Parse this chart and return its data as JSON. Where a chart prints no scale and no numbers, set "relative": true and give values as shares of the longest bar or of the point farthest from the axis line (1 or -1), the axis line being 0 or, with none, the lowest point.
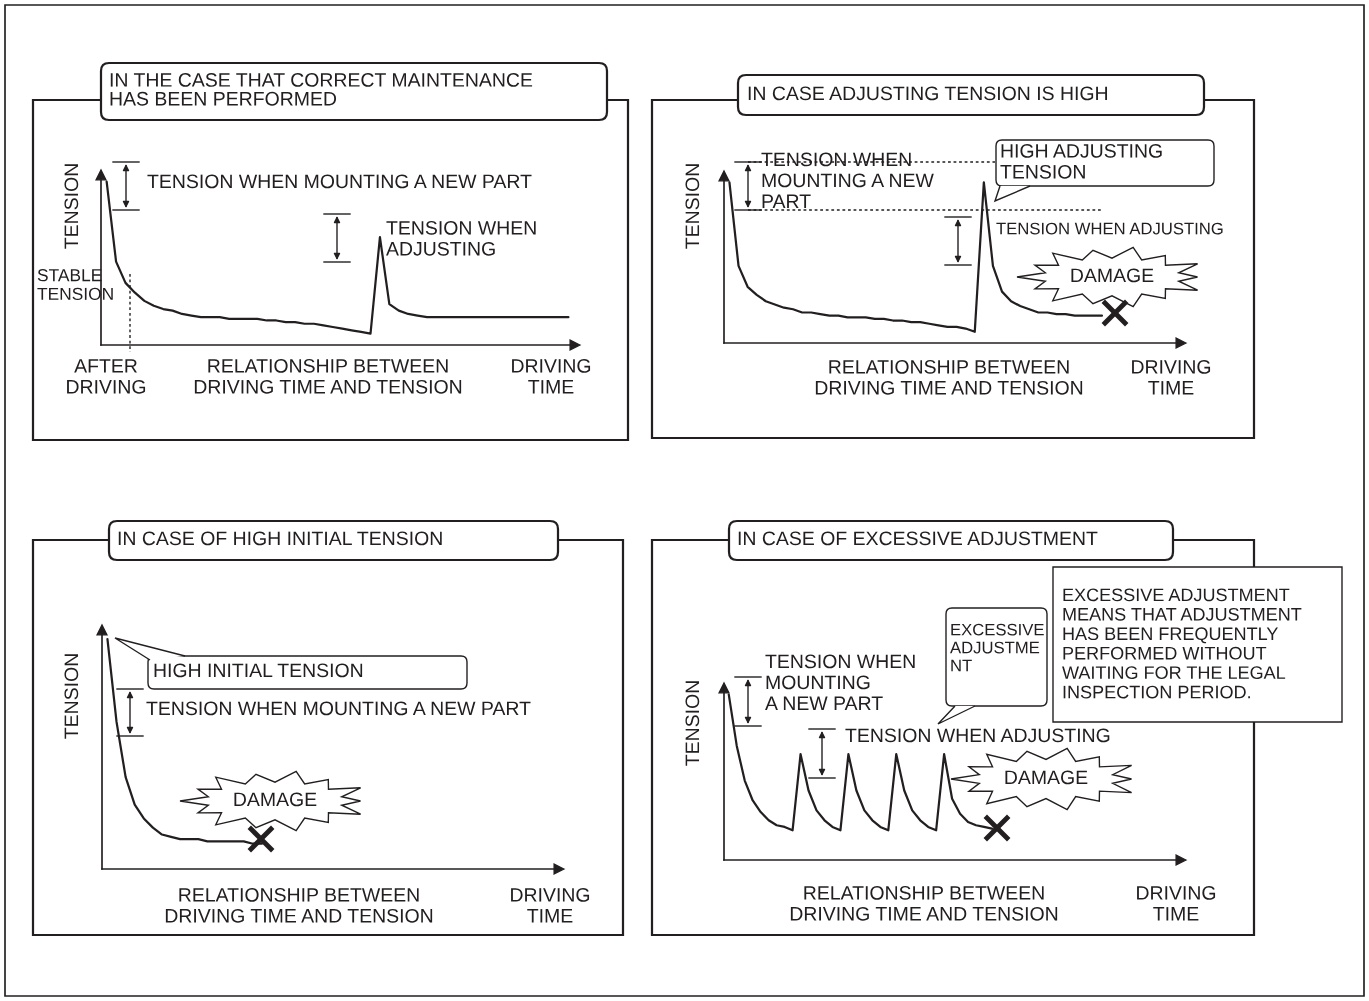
{
  "chart_data": [
    {
      "type": "line",
      "relative": true,
      "title": "IN THE CASE THAT CORRECT MAINTENANCE\nHAS BEEN PERFORMED",
      "ylabel": "TENSION",
      "xlabel": "DRIVING\nTIME",
      "annotations": [
        "TENSION WHEN MOUNTING A NEW PART",
        "TENSION WHEN\nADJUSTING",
        "STABLE\nTENSION",
        "AFTER\nDRIVING",
        "RELATIONSHIP BETWEEN\nDRIVING TIME AND TENSION"
      ],
      "categories": [
        null,
        null,
        null,
        null,
        null,
        null,
        null,
        null,
        null,
        null,
        null,
        null,
        null,
        null,
        null,
        null,
        null,
        null,
        null,
        null,
        null,
        null,
        null,
        null,
        null,
        null,
        null,
        null,
        null,
        null,
        null,
        null,
        null,
        null,
        null,
        null,
        null,
        null,
        null,
        null,
        null,
        null,
        null,
        null,
        null,
        null,
        null,
        null,
        null,
        null
      ],
      "series": [
        {
          "color": "#231f20",
          "values": [
            1.0,
            0.51,
            0.38,
            0.32,
            0.27,
            0.24,
            0.22,
            0.21,
            0.19,
            0.18,
            0.17,
            0.17,
            0.17,
            0.16,
            0.16,
            0.16,
            0.16,
            0.15,
            0.15,
            0.14,
            0.14,
            0.13,
            0.13,
            0.12,
            0.11,
            0.1,
            0.09,
            0.08,
            0.07,
            0.66,
            0.25,
            0.21,
            0.19,
            0.18,
            0.17,
            0.17,
            0.17,
            0.17,
            0.17,
            0.17,
            0.17,
            0.17,
            0.17,
            0.17,
            0.17,
            0.17,
            0.17,
            0.17,
            0.17,
            0.17
          ]
        }
      ]
    },
    {
      "type": "line",
      "relative": true,
      "title": "IN CASE ADJUSTING TENSION IS HIGH",
      "ylabel": "TENSION",
      "xlabel": "DRIVING\nTIME",
      "annotations": [
        "TENSION WHEN\nMOUNTING A NEW\nPART",
        "HIGH ADJUSTING\nTENSION",
        "TENSION WHEN ADJUSTING",
        "DAMAGE",
        "RELATIONSHIP BETWEEN\nDRIVING TIME AND TENSION"
      ],
      "categories": [
        null,
        null,
        null,
        null,
        null,
        null,
        null,
        null,
        null,
        null,
        null,
        null,
        null,
        null,
        null,
        null,
        null,
        null,
        null,
        null,
        null,
        null,
        null,
        null,
        null,
        null,
        null,
        null,
        null,
        null,
        null,
        null,
        null,
        null,
        null,
        null,
        null,
        null,
        null,
        null,
        null,
        null,
        null,
        null,
        null,
        null,
        null,
        null,
        null,
        null
      ],
      "series": [
        {
          "color": "#231f20",
          "values": [
            1.0,
            0.48,
            0.35,
            0.3,
            0.26,
            0.24,
            0.22,
            0.21,
            0.19,
            0.19,
            0.18,
            0.17,
            0.17,
            0.16,
            0.16,
            0.16,
            0.15,
            0.15,
            0.14,
            0.14,
            0.13,
            0.13,
            0.12,
            0.11,
            0.1,
            0.1,
            0.09,
            0.07,
            1.0,
            0.48,
            0.32,
            0.26,
            0.23,
            0.21,
            0.19,
            0.19,
            0.18,
            0.18,
            0.17,
            0.17,
            0.17,
            0.17,
            null,
            null,
            null,
            null,
            null,
            null,
            null,
            null
          ]
        }
      ]
    },
    {
      "type": "line",
      "relative": true,
      "title": "IN CASE OF HIGH INITIAL TENSION",
      "ylabel": "TENSION",
      "xlabel": "DRIVING\nTIME",
      "annotations": [
        "HIGH INITIAL TENSION",
        "TENSION WHEN MOUNTING A NEW PART",
        "DAMAGE",
        "RELATIONSHIP BETWEEN\nDRIVING TIME AND TENSION"
      ],
      "categories": [
        null,
        null,
        null,
        null,
        null,
        null,
        null,
        null,
        null,
        null,
        null,
        null,
        null,
        null,
        null,
        null,
        null,
        null,
        null,
        null,
        null,
        null,
        null,
        null,
        null,
        null,
        null,
        null,
        null,
        null,
        null,
        null,
        null,
        null,
        null,
        null,
        null,
        null,
        null,
        null,
        null,
        null,
        null,
        null,
        null,
        null,
        null,
        null,
        null,
        null
      ],
      "series": [
        {
          "color": "#231f20",
          "values": [
            1.0,
            0.64,
            0.4,
            0.28,
            0.22,
            0.18,
            0.15,
            0.14,
            0.13,
            0.13,
            0.13,
            0.12,
            0.12,
            0.12,
            0.12,
            0.12,
            0.11,
            0.11,
            null,
            null,
            null,
            null,
            null,
            null,
            null,
            null,
            null,
            null,
            null,
            null,
            null,
            null,
            null,
            null,
            null,
            null,
            null,
            null,
            null,
            null,
            null,
            null,
            null,
            null,
            null,
            null,
            null,
            null,
            null,
            null
          ]
        }
      ]
    },
    {
      "type": "line",
      "relative": true,
      "title": "IN CASE OF EXCESSIVE ADJUSTMENT",
      "ylabel": "TENSION",
      "xlabel": "DRIVING\nTIME",
      "annotations": [
        "TENSION WHEN\nMOUNTING\nA NEW PART",
        "EXCESSIVE\nADJUSTME\nNT",
        "EXCESSIVE ADJUSTMENT\nMEANS THAT ADJUSTMENT\nHAS BEEN FREQUENTLY\nPERFORMED WITHOUT\nWAITING FOR THE LEGAL\nINSPECTION PERIOD.",
        "TENSION WHEN ADJUSTING",
        "DAMAGE",
        "RELATIONSHIP BETWEEN\nDRIVING TIME AND TENSION"
      ],
      "categories": [
        null,
        null,
        null,
        null,
        null,
        null,
        null,
        null,
        null,
        null,
        null,
        null,
        null,
        null,
        null,
        null,
        null,
        null,
        null,
        null,
        null,
        null,
        null,
        null,
        null,
        null,
        null,
        null,
        null,
        null,
        null,
        null,
        null,
        null,
        null,
        null,
        null,
        null,
        null,
        null,
        null,
        null,
        null,
        null,
        null,
        null,
        null,
        null,
        null,
        null,
        null,
        null,
        null,
        null,
        null,
        null,
        null
      ],
      "series": [
        {
          "color": "#231f20",
          "values": [
            1.0,
            0.69,
            0.48,
            0.36,
            0.29,
            0.24,
            0.21,
            0.2,
            0.18,
            0.64,
            0.42,
            0.3,
            0.24,
            0.2,
            0.18,
            0.64,
            0.42,
            0.3,
            0.24,
            0.2,
            0.18,
            0.64,
            0.42,
            0.3,
            0.24,
            0.2,
            0.18,
            0.64,
            0.37,
            0.28,
            0.23,
            0.21,
            0.2,
            0.19,
            null,
            null,
            null,
            null,
            null,
            null,
            null,
            null,
            null,
            null,
            null,
            null,
            null,
            null,
            null,
            null,
            null,
            null,
            null,
            null,
            null,
            null,
            null
          ]
        }
      ]
    }
  ]
}
